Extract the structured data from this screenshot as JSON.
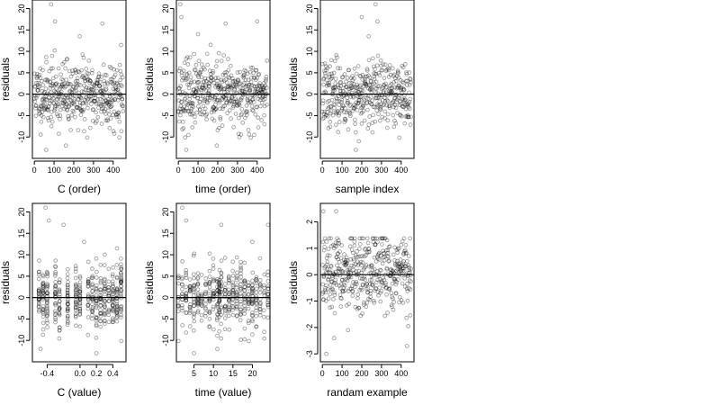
{
  "figure": {
    "layout": "2 rows x 3 columns of residual scatter plots"
  },
  "chart_data": [
    {
      "id": "p1",
      "type": "scatter",
      "xlabel": "C (order)",
      "ylabel": "residuals",
      "xlim": [
        -10,
        465
      ],
      "ylim": [
        -15,
        22
      ],
      "xticks": [
        0,
        100,
        200,
        300,
        400
      ],
      "xticklabels": [
        "0",
        "100",
        "200",
        "300",
        "400"
      ],
      "yticks": [
        -10,
        -5,
        0,
        5,
        10,
        15,
        20
      ],
      "yticklabels": [
        "-10",
        "-5",
        "0",
        "5",
        "10",
        "15",
        "20"
      ],
      "reference_line_y": 0,
      "points": {
        "n": 450,
        "x_min": 0,
        "x_max": 450,
        "x_pattern": "index",
        "y_sd": 5.2,
        "y_min": -13,
        "y_max": 21,
        "seed": 11,
        "outliers": [
          [
            85,
            21
          ],
          [
            105,
            17
          ],
          [
            230,
            13.5
          ],
          [
            345,
            16.5
          ],
          [
            440,
            11.5
          ],
          [
            60,
            -13
          ],
          [
            160,
            -12
          ]
        ]
      }
    },
    {
      "id": "p2",
      "type": "scatter",
      "xlabel": "time (order)",
      "ylabel": "residuals",
      "xlim": [
        -10,
        465
      ],
      "ylim": [
        -15,
        22
      ],
      "xticks": [
        0,
        100,
        200,
        300,
        400
      ],
      "xticklabels": [
        "0",
        "100",
        "200",
        "300",
        "400"
      ],
      "yticks": [
        -10,
        -5,
        0,
        5,
        10,
        15,
        20
      ],
      "yticklabels": [
        "-10",
        "-5",
        "0",
        "5",
        "10",
        "15",
        "20"
      ],
      "reference_line_y": 0,
      "points": {
        "n": 450,
        "x_min": 0,
        "x_max": 450,
        "x_pattern": "index",
        "y_sd": 5.2,
        "y_min": -13,
        "y_max": 21,
        "seed": 23,
        "outliers": [
          [
            10,
            21
          ],
          [
            15,
            18
          ],
          [
            100,
            14
          ],
          [
            240,
            16.5
          ],
          [
            400,
            17
          ],
          [
            195,
            -12
          ],
          [
            40,
            -13
          ]
        ]
      }
    },
    {
      "id": "p3",
      "type": "scatter",
      "xlabel": "sample index",
      "ylabel": "residuals",
      "xlim": [
        -10,
        465
      ],
      "ylim": [
        -15,
        22
      ],
      "xticks": [
        0,
        100,
        200,
        300,
        400
      ],
      "xticklabels": [
        "0",
        "100",
        "200",
        "300",
        "400"
      ],
      "yticks": [
        -10,
        -5,
        0,
        5,
        10,
        15,
        20
      ],
      "yticklabels": [
        "-10",
        "-5",
        "0",
        "5",
        "10",
        "15",
        "20"
      ],
      "reference_line_y": 0,
      "points": {
        "n": 450,
        "x_min": 0,
        "x_max": 450,
        "x_pattern": "index",
        "y_sd": 5.2,
        "y_min": -13,
        "y_max": 21,
        "seed": 37,
        "outliers": [
          [
            200,
            18
          ],
          [
            270,
            21
          ],
          [
            280,
            17
          ],
          [
            235,
            13.5
          ],
          [
            170,
            -13
          ],
          [
            185,
            -11
          ]
        ]
      }
    },
    {
      "id": "p4",
      "type": "scatter",
      "xlabel": "C (value)",
      "ylabel": "residuals",
      "xlim": [
        -0.58,
        0.56
      ],
      "ylim": [
        -15,
        22
      ],
      "xticks": [
        -0.4,
        0.0,
        0.2,
        0.4
      ],
      "xticklabels": [
        "-0.4",
        "0.0",
        "0.2",
        "0.4"
      ],
      "yticks": [
        -10,
        -5,
        0,
        5,
        10,
        15,
        20
      ],
      "yticklabels": [
        "-10",
        "-5",
        "0",
        "5",
        "10",
        "15",
        "20"
      ],
      "reference_line_y": 0,
      "points": {
        "n": 450,
        "x_min": -0.52,
        "x_max": 0.52,
        "x_pattern": "grouped",
        "y_sd": 5.2,
        "y_min": -13,
        "y_max": 21,
        "seed": 41,
        "x_groups": [
          -0.5,
          -0.45,
          -0.4,
          -0.3,
          -0.25,
          -0.15,
          -0.05,
          0.0,
          0.1,
          0.15,
          0.2,
          0.25,
          0.3,
          0.35,
          0.4,
          0.45,
          0.5
        ],
        "outliers": [
          [
            -0.42,
            21
          ],
          [
            -0.38,
            18
          ],
          [
            -0.2,
            17
          ],
          [
            0.05,
            13
          ],
          [
            0.45,
            11.5
          ],
          [
            -0.48,
            -12
          ],
          [
            0.2,
            -13
          ]
        ]
      }
    },
    {
      "id": "p5",
      "type": "scatter",
      "xlabel": "time (value)",
      "ylabel": "residuals",
      "xlim": [
        0.5,
        24.5
      ],
      "ylim": [
        -15,
        22
      ],
      "xticks": [
        5,
        10,
        15,
        20
      ],
      "xticklabels": [
        "5",
        "10",
        "15",
        "20"
      ],
      "yticks": [
        -10,
        -5,
        0,
        5,
        10,
        15,
        20
      ],
      "yticklabels": [
        "-10",
        "-5",
        "0",
        "5",
        "10",
        "15",
        "20"
      ],
      "reference_line_y": 0,
      "points": {
        "n": 450,
        "x_min": 1,
        "x_max": 24,
        "x_pattern": "grouped",
        "y_sd": 5.2,
        "y_min": -13,
        "y_max": 21,
        "seed": 53,
        "x_groups": [
          1,
          2,
          3,
          4,
          5,
          6,
          7,
          8,
          9,
          10,
          11,
          11.5,
          12,
          13,
          14,
          15,
          16,
          17,
          18,
          19,
          20,
          21,
          22,
          23,
          24
        ],
        "outliers": [
          [
            2,
            21
          ],
          [
            3,
            18
          ],
          [
            12,
            17
          ],
          [
            20,
            13
          ],
          [
            24,
            17
          ],
          [
            11,
            -12
          ],
          [
            5,
            -13
          ]
        ]
      }
    },
    {
      "id": "p6",
      "type": "scatter",
      "xlabel": "randam example",
      "ylabel": "residuals",
      "xlim": [
        -10,
        465
      ],
      "ylim": [
        -3.3,
        2.7
      ],
      "xticks": [
        0,
        100,
        200,
        300,
        400
      ],
      "xticklabels": [
        "0",
        "100",
        "200",
        "300",
        "400"
      ],
      "yticks": [
        -3,
        -2,
        -1,
        0,
        1,
        2
      ],
      "yticklabels": [
        "-3",
        "-2",
        "-1",
        "0",
        "1",
        "2"
      ],
      "reference_line_y": 0,
      "points": {
        "n": 450,
        "x_min": 0,
        "x_max": 450,
        "x_pattern": "index",
        "y_sd": 1.0,
        "y_min": -3.1,
        "y_max": 2.5,
        "seed": 67,
        "outliers": [
          [
            60,
            -2.4
          ],
          [
            430,
            -2.7
          ],
          [
            20,
            -3.0
          ],
          [
            5,
            2.4
          ],
          [
            70,
            2.4
          ]
        ]
      }
    }
  ]
}
